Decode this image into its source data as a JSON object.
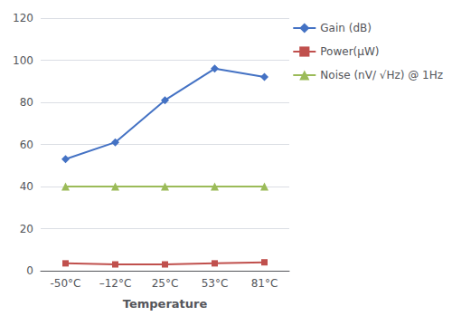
{
  "chart_data": {
    "type": "line",
    "xlabel": "Temperature",
    "categories": [
      "-50°C",
      "–12°C",
      "25°C",
      "53°C",
      "81°C"
    ],
    "series": [
      {
        "name": "Gain (dB)",
        "color": "#4472C4",
        "marker": "diamond",
        "values": [
          53,
          61,
          81,
          96,
          92
        ]
      },
      {
        "name": "Power(μW)",
        "color": "#C0504D",
        "marker": "square",
        "values": [
          3.5,
          3,
          3,
          3.5,
          4
        ]
      },
      {
        "name": "Noise (nV/ √Hz) @ 1Hz",
        "color": "#9BBB59",
        "marker": "triangle",
        "values": [
          40,
          40,
          40,
          40,
          40
        ]
      }
    ],
    "ylim": [
      0,
      120
    ],
    "yticks": [
      0,
      20,
      40,
      60,
      80,
      100,
      120
    ],
    "grid": true,
    "legend": "right"
  }
}
